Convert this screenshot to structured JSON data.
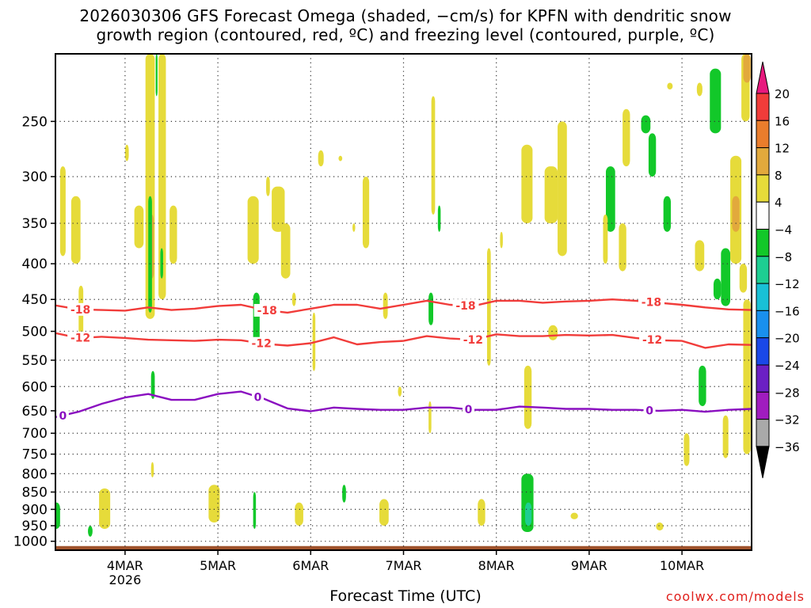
{
  "title": {
    "line1": "2026030306 GFS Forecast Omega (shaded, −cm/s) for KPFN with dendritic snow",
    "line2": "growth region (contoured, red, ºC) and freezing level (contoured, purple, ºC)"
  },
  "credit": "coolwx.com/models",
  "chart_data": {
    "type": "heatmap",
    "title": "2026030306 GFS Forecast Omega (shaded, −cm/s) for KPFN with dendritic snow growth region (contoured, red, ºC) and freezing level (contoured, purple, ºC)",
    "xlabel": "Forecast Time (UTC)",
    "ylabel": "",
    "x_range_days": [
      3.25,
      10.75
    ],
    "y_range_hpa": [
      200,
      1030
    ],
    "y_scale": "log",
    "grid": true,
    "x_ticks": [
      {
        "day": 4,
        "label": "4MAR",
        "sublabel": "2026"
      },
      {
        "day": 5,
        "label": "5MAR",
        "sublabel": ""
      },
      {
        "day": 6,
        "label": "6MAR",
        "sublabel": ""
      },
      {
        "day": 7,
        "label": "7MAR",
        "sublabel": ""
      },
      {
        "day": 8,
        "label": "8MAR",
        "sublabel": ""
      },
      {
        "day": 9,
        "label": "9MAR",
        "sublabel": ""
      },
      {
        "day": 10,
        "label": "10MAR",
        "sublabel": ""
      }
    ],
    "y_ticks": [
      {
        "p": 250,
        "label": "250"
      },
      {
        "p": 300,
        "label": "300"
      },
      {
        "p": 350,
        "label": "350"
      },
      {
        "p": 400,
        "label": "400"
      },
      {
        "p": 450,
        "label": "450"
      },
      {
        "p": 500,
        "label": "500"
      },
      {
        "p": 550,
        "label": "550"
      },
      {
        "p": 600,
        "label": "600"
      },
      {
        "p": 650,
        "label": "650"
      },
      {
        "p": 700,
        "label": "700"
      },
      {
        "p": 750,
        "label": "750"
      },
      {
        "p": 800,
        "label": "800"
      },
      {
        "p": 850,
        "label": "850"
      },
      {
        "p": 900,
        "label": "900"
      },
      {
        "p": 950,
        "label": "950"
      },
      {
        "p": 1000,
        "label": "1000"
      }
    ],
    "colorbar": {
      "labels": [
        "20",
        "16",
        "12",
        "8",
        "4",
        "−4",
        "−8",
        "−12",
        "−16",
        "−20",
        "−24",
        "−28",
        "−32",
        "−36"
      ],
      "bins": [
        {
          "lo": 20,
          "hi": 99,
          "color": "#e8197e"
        },
        {
          "lo": 16,
          "hi": 20,
          "color": "#f13c3a"
        },
        {
          "lo": 12,
          "hi": 16,
          "color": "#ea7d2c"
        },
        {
          "lo": 8,
          "hi": 12,
          "color": "#e2a93c"
        },
        {
          "lo": 4,
          "hi": 8,
          "color": "#e6db3a"
        },
        {
          "lo": -4,
          "hi": 4,
          "color": "#ffffff"
        },
        {
          "lo": -8,
          "hi": -4,
          "color": "#12c829"
        },
        {
          "lo": -12,
          "hi": -8,
          "color": "#1ece92"
        },
        {
          "lo": -16,
          "hi": -12,
          "color": "#19c0d6"
        },
        {
          "lo": -20,
          "hi": -16,
          "color": "#1990ee"
        },
        {
          "lo": -24,
          "hi": -20,
          "color": "#1a48e8"
        },
        {
          "lo": -28,
          "hi": -24,
          "color": "#6b1fc4"
        },
        {
          "lo": -32,
          "hi": -28,
          "color": "#a01cbf"
        },
        {
          "lo": -36,
          "hi": -32,
          "color": "#a9a9a9"
        },
        {
          "lo": -99,
          "hi": -36,
          "color": "#000000"
        }
      ]
    },
    "omega_cells": [
      {
        "d0": 3.3,
        "d1": 3.36,
        "p0": 290,
        "p1": 390,
        "v": 5
      },
      {
        "d0": 3.42,
        "d1": 3.52,
        "p0": 320,
        "p1": 400,
        "v": 5
      },
      {
        "d0": 3.22,
        "d1": 3.3,
        "p0": 880,
        "p1": 960,
        "v": -6
      },
      {
        "d0": 3.5,
        "d1": 3.55,
        "p0": 430,
        "p1": 510,
        "v": 5
      },
      {
        "d0": 3.72,
        "d1": 3.84,
        "p0": 840,
        "p1": 960,
        "v": 5
      },
      {
        "d0": 3.6,
        "d1": 3.65,
        "p0": 950,
        "p1": 985,
        "v": -6
      },
      {
        "d0": 4.0,
        "d1": 4.04,
        "p0": 270,
        "p1": 285,
        "v": 5
      },
      {
        "d0": 4.1,
        "d1": 4.2,
        "p0": 330,
        "p1": 380,
        "v": 5
      },
      {
        "d0": 4.22,
        "d1": 4.32,
        "p0": 200,
        "p1": 480,
        "v": 5
      },
      {
        "d0": 4.26,
        "d1": 4.31,
        "p0": 340,
        "p1": 420,
        "v": 9
      },
      {
        "d0": 4.25,
        "d1": 4.29,
        "p0": 320,
        "p1": 470,
        "v": -6
      },
      {
        "d0": 4.28,
        "d1": 4.32,
        "p0": 570,
        "p1": 625,
        "v": -6
      },
      {
        "d0": 4.28,
        "d1": 4.31,
        "p0": 770,
        "p1": 810,
        "v": 5
      },
      {
        "d0": 4.33,
        "d1": 4.35,
        "p0": 200,
        "p1": 230,
        "v": -6
      },
      {
        "d0": 4.36,
        "d1": 4.44,
        "p0": 200,
        "p1": 450,
        "v": 5
      },
      {
        "d0": 4.38,
        "d1": 4.41,
        "p0": 380,
        "p1": 420,
        "v": -6
      },
      {
        "d0": 4.48,
        "d1": 4.56,
        "p0": 330,
        "p1": 400,
        "v": 5
      },
      {
        "d0": 4.9,
        "d1": 5.02,
        "p0": 830,
        "p1": 940,
        "v": 5
      },
      {
        "d0": 5.32,
        "d1": 5.44,
        "p0": 320,
        "p1": 400,
        "v": 5
      },
      {
        "d0": 5.38,
        "d1": 5.45,
        "p0": 440,
        "p1": 530,
        "v": -6
      },
      {
        "d0": 5.38,
        "d1": 5.41,
        "p0": 850,
        "p1": 960,
        "v": -6
      },
      {
        "d0": 5.52,
        "d1": 5.56,
        "p0": 300,
        "p1": 320,
        "v": 5
      },
      {
        "d0": 5.58,
        "d1": 5.72,
        "p0": 310,
        "p1": 360,
        "v": 5
      },
      {
        "d0": 5.68,
        "d1": 5.78,
        "p0": 350,
        "p1": 420,
        "v": 5
      },
      {
        "d0": 5.8,
        "d1": 5.84,
        "p0": 440,
        "p1": 460,
        "v": 5
      },
      {
        "d0": 5.83,
        "d1": 5.92,
        "p0": 880,
        "p1": 950,
        "v": 5
      },
      {
        "d0": 6.02,
        "d1": 6.05,
        "p0": 470,
        "p1": 570,
        "v": 5
      },
      {
        "d0": 6.08,
        "d1": 6.14,
        "p0": 275,
        "p1": 290,
        "v": 5
      },
      {
        "d0": 6.3,
        "d1": 6.34,
        "p0": 280,
        "p1": 285,
        "v": 5
      },
      {
        "d0": 6.34,
        "d1": 6.38,
        "p0": 830,
        "p1": 880,
        "v": -6
      },
      {
        "d0": 6.45,
        "d1": 6.48,
        "p0": 350,
        "p1": 360,
        "v": 5
      },
      {
        "d0": 6.56,
        "d1": 6.63,
        "p0": 300,
        "p1": 380,
        "v": 5
      },
      {
        "d0": 6.74,
        "d1": 6.84,
        "p0": 870,
        "p1": 950,
        "v": 5
      },
      {
        "d0": 6.78,
        "d1": 6.83,
        "p0": 440,
        "p1": 480,
        "v": 5
      },
      {
        "d0": 6.94,
        "d1": 6.98,
        "p0": 600,
        "p1": 620,
        "v": 5
      },
      {
        "d0": 7.3,
        "d1": 7.34,
        "p0": 230,
        "p1": 340,
        "v": 5
      },
      {
        "d0": 7.27,
        "d1": 7.32,
        "p0": 440,
        "p1": 490,
        "v": -6
      },
      {
        "d0": 7.27,
        "d1": 7.3,
        "p0": 630,
        "p1": 700,
        "v": 5
      },
      {
        "d0": 7.37,
        "d1": 7.4,
        "p0": 330,
        "p1": 360,
        "v": -6
      },
      {
        "d0": 7.8,
        "d1": 7.88,
        "p0": 870,
        "p1": 950,
        "v": 5
      },
      {
        "d0": 7.9,
        "d1": 7.94,
        "p0": 380,
        "p1": 560,
        "v": 5
      },
      {
        "d0": 8.04,
        "d1": 8.07,
        "p0": 360,
        "p1": 380,
        "v": 5
      },
      {
        "d0": 8.27,
        "d1": 8.39,
        "p0": 270,
        "p1": 350,
        "v": 5
      },
      {
        "d0": 8.3,
        "d1": 8.38,
        "p0": 560,
        "p1": 690,
        "v": 5
      },
      {
        "d0": 8.27,
        "d1": 8.4,
        "p0": 800,
        "p1": 970,
        "v": -6
      },
      {
        "d0": 8.31,
        "d1": 8.38,
        "p0": 880,
        "p1": 950,
        "v": -10
      },
      {
        "d0": 8.52,
        "d1": 8.66,
        "p0": 290,
        "p1": 350,
        "v": 5
      },
      {
        "d0": 8.66,
        "d1": 8.76,
        "p0": 250,
        "p1": 390,
        "v": 5
      },
      {
        "d0": 8.56,
        "d1": 8.66,
        "p0": 490,
        "p1": 515,
        "v": 5
      },
      {
        "d0": 8.8,
        "d1": 8.88,
        "p0": 910,
        "p1": 930,
        "v": 5
      },
      {
        "d0": 9.18,
        "d1": 9.28,
        "p0": 290,
        "p1": 360,
        "v": -6
      },
      {
        "d0": 9.15,
        "d1": 9.2,
        "p0": 340,
        "p1": 400,
        "v": 5
      },
      {
        "d0": 9.32,
        "d1": 9.4,
        "p0": 350,
        "p1": 410,
        "v": 5
      },
      {
        "d0": 9.36,
        "d1": 9.44,
        "p0": 240,
        "p1": 290,
        "v": 5
      },
      {
        "d0": 9.56,
        "d1": 9.66,
        "p0": 245,
        "p1": 260,
        "v": -6
      },
      {
        "d0": 9.64,
        "d1": 9.72,
        "p0": 260,
        "p1": 300,
        "v": -6
      },
      {
        "d0": 9.72,
        "d1": 9.8,
        "p0": 940,
        "p1": 965,
        "v": 5
      },
      {
        "d0": 9.8,
        "d1": 9.88,
        "p0": 320,
        "p1": 360,
        "v": -6
      },
      {
        "d0": 9.84,
        "d1": 9.9,
        "p0": 220,
        "p1": 225,
        "v": 5
      },
      {
        "d0": 10.02,
        "d1": 10.08,
        "p0": 700,
        "p1": 780,
        "v": 5
      },
      {
        "d0": 10.14,
        "d1": 10.24,
        "p0": 370,
        "p1": 410,
        "v": 5
      },
      {
        "d0": 10.16,
        "d1": 10.22,
        "p0": 220,
        "p1": 230,
        "v": 5
      },
      {
        "d0": 10.18,
        "d1": 10.26,
        "p0": 560,
        "p1": 640,
        "v": -6
      },
      {
        "d0": 10.3,
        "d1": 10.42,
        "p0": 210,
        "p1": 260,
        "v": -6
      },
      {
        "d0": 10.34,
        "d1": 10.42,
        "p0": 420,
        "p1": 450,
        "v": -6
      },
      {
        "d0": 10.42,
        "d1": 10.52,
        "p0": 380,
        "p1": 460,
        "v": -6
      },
      {
        "d0": 10.44,
        "d1": 10.5,
        "p0": 660,
        "p1": 760,
        "v": 5
      },
      {
        "d0": 10.52,
        "d1": 10.64,
        "p0": 280,
        "p1": 400,
        "v": 5
      },
      {
        "d0": 10.54,
        "d1": 10.62,
        "p0": 320,
        "p1": 360,
        "v": 9
      },
      {
        "d0": 10.62,
        "d1": 10.7,
        "p0": 400,
        "p1": 440,
        "v": 5
      },
      {
        "d0": 10.64,
        "d1": 10.73,
        "p0": 200,
        "p1": 250,
        "v": 5
      },
      {
        "d0": 10.66,
        "d1": 10.74,
        "p0": 450,
        "p1": 750,
        "v": 5
      },
      {
        "d0": 10.66,
        "d1": 10.74,
        "p0": 200,
        "p1": 220,
        "v": 10
      }
    ],
    "series": [
      {
        "name": "-18 C isotherm",
        "color": "#f13c3a",
        "label": "-18",
        "label_days": [
          3.52,
          5.53,
          7.67,
          9.67
        ],
        "points": [
          [
            3.25,
            459
          ],
          [
            3.5,
            465
          ],
          [
            3.75,
            466
          ],
          [
            4.0,
            467
          ],
          [
            4.25,
            462
          ],
          [
            4.5,
            466
          ],
          [
            4.75,
            464
          ],
          [
            5.0,
            460
          ],
          [
            5.25,
            458
          ],
          [
            5.5,
            466
          ],
          [
            5.75,
            470
          ],
          [
            6.0,
            464
          ],
          [
            6.25,
            458
          ],
          [
            6.5,
            458
          ],
          [
            6.75,
            464
          ],
          [
            7.0,
            458
          ],
          [
            7.25,
            452
          ],
          [
            7.5,
            458
          ],
          [
            7.75,
            460
          ],
          [
            8.0,
            452
          ],
          [
            8.25,
            452
          ],
          [
            8.5,
            455
          ],
          [
            8.75,
            453
          ],
          [
            9.0,
            452
          ],
          [
            9.25,
            450
          ],
          [
            9.5,
            452
          ],
          [
            9.75,
            455
          ],
          [
            10.0,
            458
          ],
          [
            10.25,
            462
          ],
          [
            10.5,
            465
          ],
          [
            10.75,
            466
          ]
        ]
      },
      {
        "name": "-12 C isotherm",
        "color": "#f13c3a",
        "label": "-12",
        "label_days": [
          3.52,
          5.47,
          7.75,
          9.68
        ],
        "points": [
          [
            3.25,
            503
          ],
          [
            3.5,
            511
          ],
          [
            3.75,
            509
          ],
          [
            4.0,
            511
          ],
          [
            4.25,
            514
          ],
          [
            4.5,
            515
          ],
          [
            4.75,
            516
          ],
          [
            5.0,
            514
          ],
          [
            5.25,
            515
          ],
          [
            5.5,
            521
          ],
          [
            5.75,
            524
          ],
          [
            6.0,
            520
          ],
          [
            6.25,
            510
          ],
          [
            6.5,
            522
          ],
          [
            6.75,
            518
          ],
          [
            7.0,
            516
          ],
          [
            7.25,
            508
          ],
          [
            7.5,
            512
          ],
          [
            7.75,
            514
          ],
          [
            8.0,
            505
          ],
          [
            8.25,
            508
          ],
          [
            8.5,
            508
          ],
          [
            8.75,
            506
          ],
          [
            9.0,
            507
          ],
          [
            9.25,
            506
          ],
          [
            9.5,
            511
          ],
          [
            9.75,
            515
          ],
          [
            10.0,
            516
          ],
          [
            10.25,
            528
          ],
          [
            10.5,
            522
          ],
          [
            10.75,
            523
          ]
        ]
      },
      {
        "name": "0 C freezing level",
        "color": "#8a0fc0",
        "label": "0",
        "label_days": [
          3.33,
          5.43,
          7.7,
          9.65
        ],
        "points": [
          [
            3.25,
            664
          ],
          [
            3.5,
            652
          ],
          [
            3.75,
            635
          ],
          [
            4.0,
            622
          ],
          [
            4.25,
            615
          ],
          [
            4.5,
            627
          ],
          [
            4.75,
            627
          ],
          [
            5.0,
            615
          ],
          [
            5.25,
            610
          ],
          [
            5.5,
            625
          ],
          [
            5.75,
            645
          ],
          [
            6.0,
            651
          ],
          [
            6.25,
            643
          ],
          [
            6.5,
            646
          ],
          [
            6.75,
            648
          ],
          [
            7.0,
            648
          ],
          [
            7.25,
            643
          ],
          [
            7.5,
            643
          ],
          [
            7.75,
            648
          ],
          [
            8.0,
            648
          ],
          [
            8.25,
            641
          ],
          [
            8.5,
            643
          ],
          [
            8.75,
            646
          ],
          [
            9.0,
            646
          ],
          [
            9.25,
            648
          ],
          [
            9.5,
            648
          ],
          [
            9.75,
            650
          ],
          [
            10.0,
            648
          ],
          [
            10.25,
            652
          ],
          [
            10.5,
            648
          ],
          [
            10.75,
            646
          ]
        ]
      }
    ],
    "surface": {
      "color": "#a0532c",
      "top_hpa": 1016
    }
  }
}
